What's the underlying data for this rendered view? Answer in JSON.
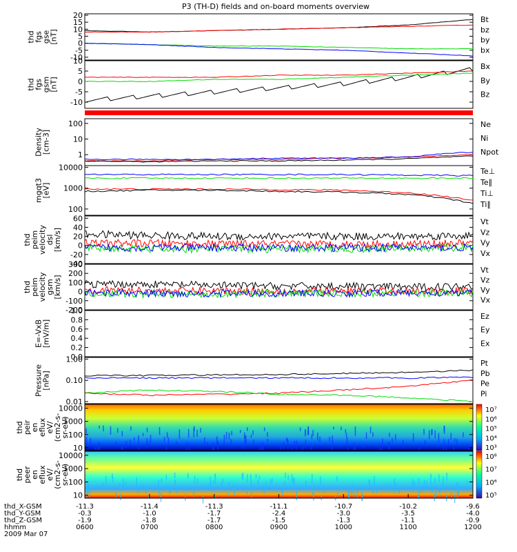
{
  "title": "P3 (TH-D) fields and on-board moments overview",
  "colors": {
    "black": "#000000",
    "red": "#ff0000",
    "green": "#00dd00",
    "blue": "#0000ff",
    "frame": "#000000"
  },
  "panels": [
    {
      "id": "fgs_gse",
      "ylabel": [
        "thd",
        "fgs",
        "gse",
        "[nT]"
      ],
      "ticks": [
        "20",
        "15",
        "10",
        "5",
        "0",
        "-5",
        "-10"
      ],
      "tick_vals": [
        20,
        15,
        10,
        5,
        0,
        -5,
        -10
      ],
      "ylim": [
        -12,
        21
      ],
      "legend": [
        {
          "text": "Bt",
          "color": "#000000"
        },
        {
          "text": "bz",
          "color": "#ff0000"
        },
        {
          "text": "by",
          "color": "#00dd00"
        },
        {
          "text": "bx",
          "color": "#0000ff"
        }
      ]
    },
    {
      "id": "fgs_gsm",
      "ylabel": [
        "thd",
        "fgs",
        "gsm",
        "[nT]"
      ],
      "ticks": [
        "10",
        "5",
        "0",
        "-5",
        "-10"
      ],
      "tick_vals": [
        10,
        5,
        0,
        -5,
        -10
      ],
      "ylim": [
        -13,
        10
      ],
      "legend": [
        {
          "text": "Bx",
          "color": "#000000"
        },
        {
          "text": "By",
          "color": "#00dd00"
        },
        {
          "text": "Bz",
          "color": "#ff0000"
        }
      ]
    },
    {
      "id": "density",
      "ylabel": [
        "Density",
        "[cm-3]"
      ],
      "ticks": [
        "100",
        "10",
        "1"
      ],
      "tick_vals": [
        100,
        10,
        1
      ],
      "ylim": [
        0.2,
        200
      ],
      "log": true,
      "legend": [
        {
          "text": "Ne",
          "color": "#ff0000"
        },
        {
          "text": "Ni",
          "color": "#000000"
        },
        {
          "text": "Npot",
          "color": "#0000ff"
        }
      ]
    },
    {
      "id": "temp",
      "ylabel": [
        "mgqt3",
        "[eV]"
      ],
      "ticks": [
        "10000",
        "1000",
        "100"
      ],
      "tick_vals": [
        10000,
        1000,
        100
      ],
      "ylim": [
        50,
        12000
      ],
      "log": true,
      "legend": [
        {
          "text": "Te⊥",
          "color": "#ff0000"
        },
        {
          "text": "Te∥",
          "color": "#000000"
        },
        {
          "text": "Ti⊥",
          "color": "#0000ff"
        },
        {
          "text": "Ti∥",
          "color": "#00dd00"
        }
      ]
    },
    {
      "id": "vel_dsl",
      "ylabel": [
        "thd",
        "peim",
        "velocity",
        "dsl",
        "[km/s]"
      ],
      "ticks": [
        "60",
        "40",
        "20",
        "0",
        "-20",
        "-40"
      ],
      "tick_vals": [
        60,
        40,
        20,
        0,
        -20,
        -40
      ],
      "ylim": [
        -40,
        65
      ],
      "legend": [
        {
          "text": "Vt",
          "color": "#000000"
        },
        {
          "text": "Vz",
          "color": "#ff0000"
        },
        {
          "text": "Vy",
          "color": "#00dd00"
        },
        {
          "text": "Vx",
          "color": "#0000ff"
        }
      ]
    },
    {
      "id": "vel_gsm",
      "ylabel": [
        "thd",
        "peim",
        "velocity",
        "gsm",
        "[km/s]"
      ],
      "ticks": [
        "300",
        "200",
        "100",
        "0",
        "-100",
        "-200"
      ],
      "tick_vals": [
        300,
        200,
        100,
        0,
        -100,
        -200
      ],
      "ylim": [
        -200,
        300
      ],
      "legend": [
        {
          "text": "Vt",
          "color": "#000000"
        },
        {
          "text": "Vz",
          "color": "#ff0000"
        },
        {
          "text": "Vy",
          "color": "#00dd00"
        },
        {
          "text": "Vx",
          "color": "#0000ff"
        }
      ]
    },
    {
      "id": "efield",
      "ylabel": [
        "E=-VxB",
        "[mV/m]"
      ],
      "ticks": [
        "1.0",
        "0.8",
        "0.6",
        "0.4",
        "0.2",
        "0.0"
      ],
      "tick_vals": [
        1.0,
        0.8,
        0.6,
        0.4,
        0.2,
        0.0
      ],
      "ylim": [
        0,
        1
      ],
      "legend": [
        {
          "text": "Ez",
          "color": "#ff0000"
        },
        {
          "text": "Ey",
          "color": "#00dd00"
        },
        {
          "text": "Ex",
          "color": "#0000ff"
        }
      ]
    },
    {
      "id": "pressure",
      "ylabel": [
        "Pressure",
        "[nPa]"
      ],
      "ticks": [
        "1.00",
        "0.10",
        "0.01"
      ],
      "tick_vals": [
        1,
        0.1,
        0.01
      ],
      "ylim": [
        0.008,
        1.2
      ],
      "log": true,
      "legend": [
        {
          "text": "Pt",
          "color": "#000000"
        },
        {
          "text": "Pb",
          "color": "#ff0000"
        },
        {
          "text": "Pe",
          "color": "#00dd00"
        },
        {
          "text": "Pi",
          "color": "#0000ff"
        }
      ]
    },
    {
      "id": "ion_spec",
      "ylabel": [
        "thd",
        "peir",
        "en",
        "eflux",
        "eV/",
        "(cm2-s-",
        "sr-eV)"
      ],
      "ticks": [
        "10000",
        "1000",
        "100",
        "10"
      ],
      "tick_vals": [
        10000,
        1000,
        100,
        10
      ],
      "ylim": [
        6,
        20000
      ],
      "log": true,
      "colorbar": [
        "10⁷",
        "10⁶",
        "10⁵",
        "10⁴",
        "10³"
      ],
      "legend": []
    },
    {
      "id": "elec_spec",
      "ylabel": [
        "thd",
        "peer",
        "en",
        "eflux",
        "eV/",
        "(cm2-s-",
        "sr-eV)"
      ],
      "ticks": [
        "10000",
        "1000",
        "100",
        "10"
      ],
      "tick_vals": [
        10000,
        1000,
        100,
        10
      ],
      "ylim": [
        6,
        20000
      ],
      "log": true,
      "colorbar": [
        "10⁸",
        "10⁷",
        "10⁶",
        "10⁵"
      ],
      "legend": []
    }
  ],
  "xaxis": {
    "rows": [
      {
        "label": "thd_X-GSM",
        "values": [
          "-11.3",
          "-11.4",
          "-11.3",
          "-11.1",
          "-10.7",
          "-10.2",
          "-9.6"
        ]
      },
      {
        "label": "thd_Y-GSM",
        "values": [
          "-0.3",
          "-1.0",
          "-1.7",
          "-2.4",
          "-3.0",
          "-3.5",
          "-4.0"
        ]
      },
      {
        "label": "thd_Z-GSM",
        "values": [
          "-1.9",
          "-1.8",
          "-1.7",
          "-1.5",
          "-1.3",
          "-1.1",
          "-0.9"
        ]
      },
      {
        "label": "hhmm",
        "values": [
          "0600",
          "0700",
          "0800",
          "0900",
          "1000",
          "1100",
          "1200"
        ]
      }
    ],
    "date": "2009 Mar 07"
  },
  "chart_data": {
    "type": "line",
    "title": "P3 (TH-D) fields and on-board moments overview",
    "x_hours": [
      6,
      7,
      8,
      9,
      10,
      11,
      12
    ],
    "x_ticklabels": [
      "0600",
      "0700",
      "0800",
      "0900",
      "1000",
      "1100",
      "1200"
    ],
    "series": [
      {
        "panel": "fgs_gse",
        "name": "Bt",
        "color": "#000000",
        "values": [
          9,
          8,
          9,
          10,
          11,
          13,
          17
        ]
      },
      {
        "panel": "fgs_gse",
        "name": "bz",
        "color": "#ff0000",
        "values": [
          8,
          8,
          9,
          10,
          11,
          12,
          13
        ]
      },
      {
        "panel": "fgs_gse",
        "name": "by",
        "color": "#00dd00",
        "values": [
          0,
          -1,
          -2,
          -2,
          -3,
          -4,
          -4
        ]
      },
      {
        "panel": "fgs_gse",
        "name": "bx",
        "color": "#0000ff",
        "values": [
          0,
          -1,
          -3,
          -4,
          -5,
          -7,
          -9
        ]
      },
      {
        "panel": "fgs_gsm",
        "name": "Bx",
        "color": "#000000",
        "values": [
          -9,
          -7,
          -5,
          -3,
          -1,
          2,
          6
        ]
      },
      {
        "panel": "fgs_gsm",
        "name": "By",
        "color": "#00dd00",
        "values": [
          0,
          0,
          1,
          1,
          2,
          3,
          4
        ]
      },
      {
        "panel": "fgs_gsm",
        "name": "Bz",
        "color": "#ff0000",
        "values": [
          2,
          2,
          2,
          3,
          3,
          4,
          5
        ]
      },
      {
        "panel": "density",
        "name": "Ne",
        "color": "#ff0000",
        "values": [
          0.4,
          0.4,
          0.5,
          0.5,
          0.6,
          0.7,
          1.0
        ]
      },
      {
        "panel": "density",
        "name": "Ni",
        "color": "#000000",
        "values": [
          0.4,
          0.35,
          0.4,
          0.4,
          0.45,
          0.55,
          0.8
        ]
      },
      {
        "panel": "density",
        "name": "Npot",
        "color": "#0000ff",
        "values": [
          0.5,
          0.5,
          0.5,
          0.6,
          0.6,
          0.7,
          1.5
        ]
      },
      {
        "panel": "temp",
        "name": "Te⊥",
        "color": "#ff0000",
        "values": [
          900,
          900,
          900,
          850,
          800,
          600,
          250
        ]
      },
      {
        "panel": "temp",
        "name": "Te∥",
        "color": "#000000",
        "values": [
          700,
          800,
          800,
          700,
          650,
          500,
          180
        ]
      },
      {
        "panel": "temp",
        "name": "Ti⊥",
        "color": "#0000ff",
        "values": [
          4500,
          4500,
          4500,
          4500,
          4500,
          4200,
          4000
        ]
      },
      {
        "panel": "temp",
        "name": "Ti∥",
        "color": "#00dd00",
        "values": [
          3000,
          3000,
          3000,
          3000,
          3000,
          3000,
          3000
        ]
      },
      {
        "panel": "vel_dsl",
        "name": "Vt",
        "color": "#000000",
        "values": [
          25,
          22,
          20,
          20,
          20,
          20,
          22
        ]
      },
      {
        "panel": "vel_dsl",
        "name": "Vz",
        "color": "#ff0000",
        "values": [
          5,
          5,
          3,
          3,
          3,
          3,
          5
        ]
      },
      {
        "panel": "vel_dsl",
        "name": "Vy",
        "color": "#00dd00",
        "values": [
          -5,
          -8,
          -8,
          -8,
          -8,
          -6,
          -5
        ]
      },
      {
        "panel": "vel_dsl",
        "name": "Vx",
        "color": "#0000ff",
        "values": [
          -5,
          -5,
          -5,
          -5,
          -5,
          -5,
          -5
        ]
      },
      {
        "panel": "vel_gsm",
        "name": "Vt",
        "color": "#000000",
        "values": [
          80,
          80,
          70,
          60,
          60,
          50,
          60
        ]
      },
      {
        "panel": "vel_gsm",
        "name": "Vz",
        "color": "#ff0000",
        "values": [
          20,
          10,
          10,
          5,
          5,
          5,
          10
        ]
      },
      {
        "panel": "vel_gsm",
        "name": "Vy",
        "color": "#00dd00",
        "values": [
          -20,
          -30,
          -25,
          -20,
          -20,
          -15,
          -20
        ]
      },
      {
        "panel": "vel_gsm",
        "name": "Vx",
        "color": "#0000ff",
        "values": [
          -10,
          -20,
          -20,
          -20,
          -20,
          -15,
          -20
        ]
      },
      {
        "panel": "pressure",
        "name": "Pt",
        "color": "#000000",
        "values": [
          0.17,
          0.17,
          0.18,
          0.19,
          0.21,
          0.24,
          0.3
        ]
      },
      {
        "panel": "pressure",
        "name": "Pb",
        "color": "#ff0000",
        "values": [
          0.025,
          0.02,
          0.022,
          0.025,
          0.035,
          0.05,
          0.1
        ]
      },
      {
        "panel": "pressure",
        "name": "Pe",
        "color": "#00dd00",
        "values": [
          0.025,
          0.035,
          0.03,
          0.022,
          0.02,
          0.015,
          0.01
        ]
      },
      {
        "panel": "pressure",
        "name": "Pi",
        "color": "#0000ff",
        "values": [
          0.13,
          0.13,
          0.13,
          0.13,
          0.13,
          0.13,
          0.14
        ]
      }
    ]
  }
}
